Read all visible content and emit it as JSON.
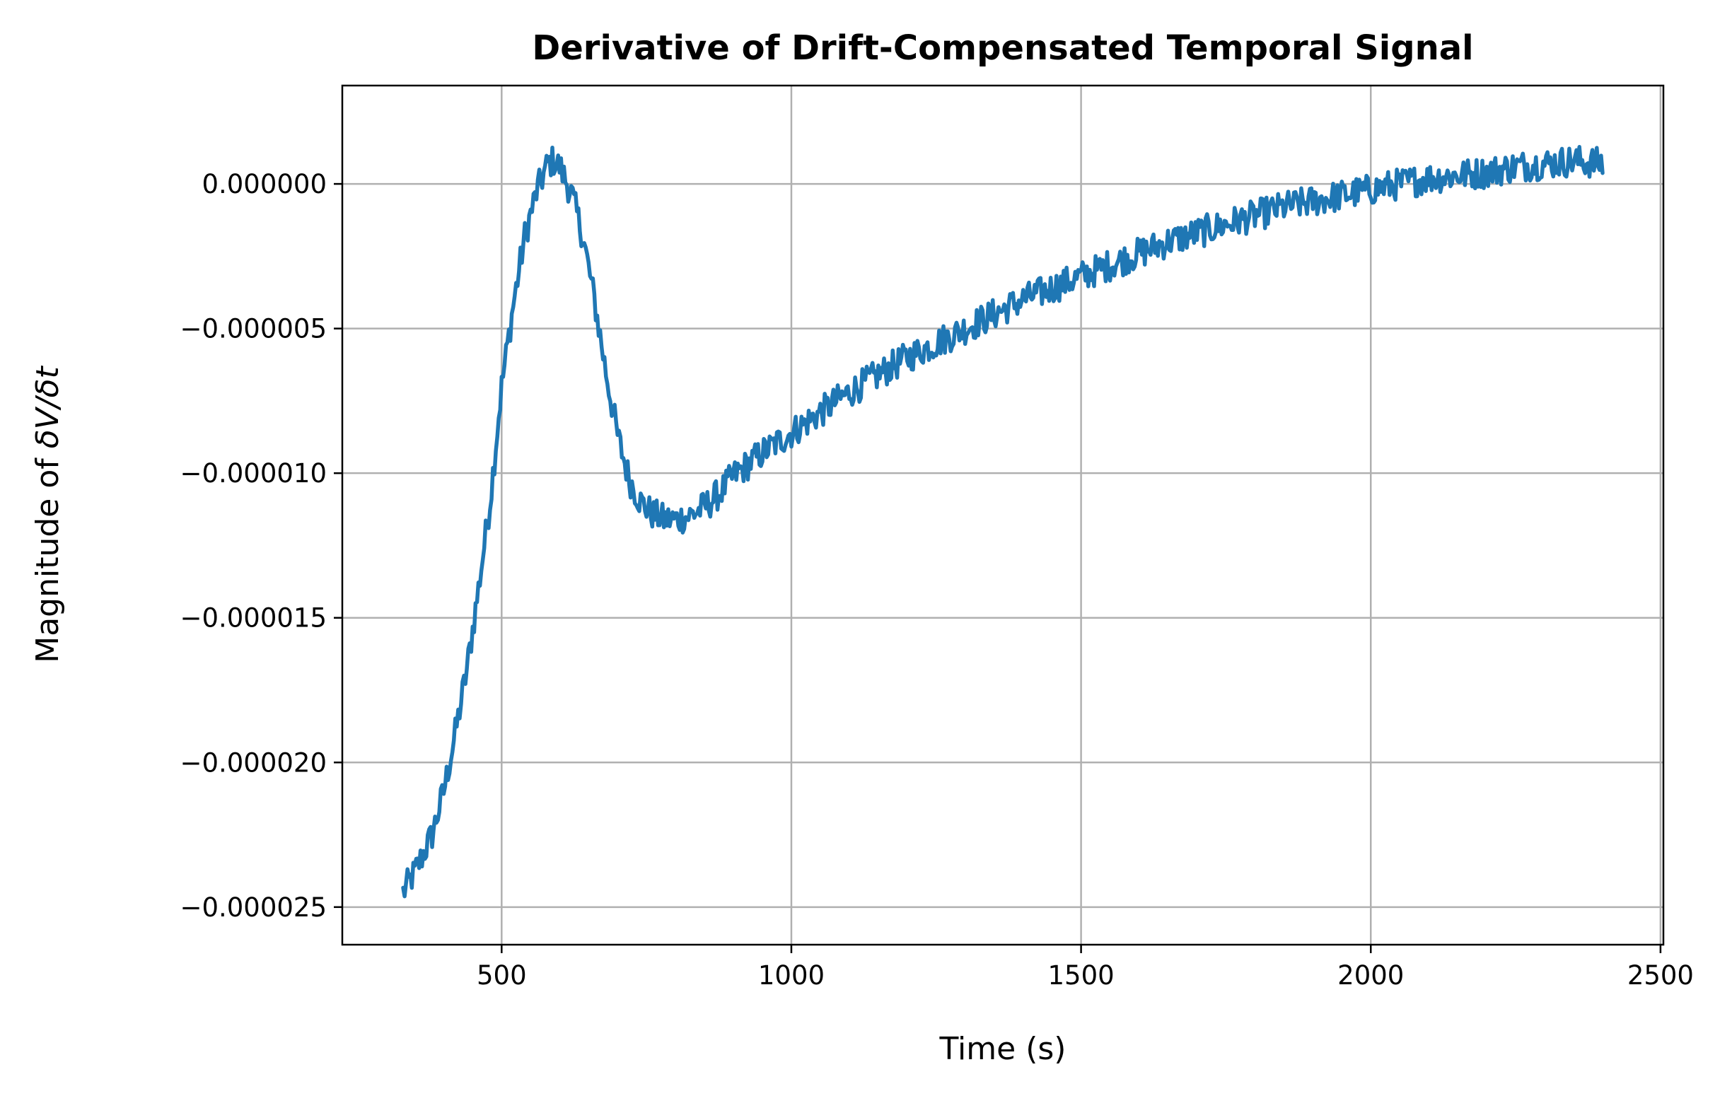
{
  "chart_data": {
    "type": "line",
    "title": "Derivative of Drift-Compensated Temporal Signal",
    "xlabel": "Time (s)",
    "ylabel_prefix": "Magnitude of ",
    "ylabel_math": "δV/δt",
    "xlim": [
      225,
      2505
    ],
    "ylim": [
      -2.63e-05,
      3.4e-06
    ],
    "grid": true,
    "x_ticks": [
      500,
      1000,
      1500,
      2000,
      2500
    ],
    "x_tick_labels": [
      "500",
      "1000",
      "1500",
      "2000",
      "2500"
    ],
    "y_ticks": [
      0,
      -5e-06,
      -1e-05,
      -1.5e-05,
      -2e-05,
      -2.5e-05
    ],
    "y_tick_labels": [
      "0.000000",
      "−0.000005",
      "−0.000010",
      "−0.000015",
      "−0.000020",
      "−0.000025"
    ],
    "series": [
      {
        "color": "#1f77b4",
        "noise_amplitude": 5.5e-07,
        "x": [
          330,
          350,
          380,
          400,
          420,
          440,
          460,
          480,
          500,
          520,
          540,
          560,
          580,
          590,
          600,
          620,
          640,
          660,
          680,
          700,
          720,
          740,
          760,
          780,
          800,
          820,
          840,
          860,
          880,
          900,
          950,
          1000,
          1050,
          1100,
          1150,
          1200,
          1250,
          1300,
          1350,
          1400,
          1450,
          1500,
          1550,
          1600,
          1650,
          1700,
          1750,
          1800,
          1850,
          1900,
          1950,
          2000,
          2050,
          2100,
          2150,
          2200,
          2250,
          2300,
          2350,
          2400
        ],
        "y": [
          -2.45e-05,
          -2.38e-05,
          -2.25e-05,
          -2.1e-05,
          -1.9e-05,
          -1.68e-05,
          -1.4e-05,
          -1.1e-05,
          -7e-06,
          -4.2e-06,
          -1.8e-06,
          -3e-07,
          7e-07,
          8e-07,
          6e-07,
          -3e-07,
          -1.8e-06,
          -4e-06,
          -6.5e-06,
          -8.7e-06,
          -1.02e-05,
          -1.1e-05,
          -1.14e-05,
          -1.16e-05,
          -1.16e-05,
          -1.15e-05,
          -1.13e-05,
          -1.1e-05,
          -1.06e-05,
          -1.01e-05,
          -9.3e-06,
          -8.6e-06,
          -7.9e-06,
          -7.2e-06,
          -6.6e-06,
          -6e-06,
          -5.5e-06,
          -5e-06,
          -4.5e-06,
          -4e-06,
          -3.6e-06,
          -3.2e-06,
          -2.8e-06,
          -2.4e-06,
          -2e-06,
          -1.7e-06,
          -1.4e-06,
          -1.1e-06,
          -8e-07,
          -6e-07,
          -4e-07,
          -2e-07,
          0.0,
          2e-07,
          3e-07,
          4e-07,
          6e-07,
          7e-07,
          8e-07,
          7e-07
        ]
      }
    ]
  }
}
